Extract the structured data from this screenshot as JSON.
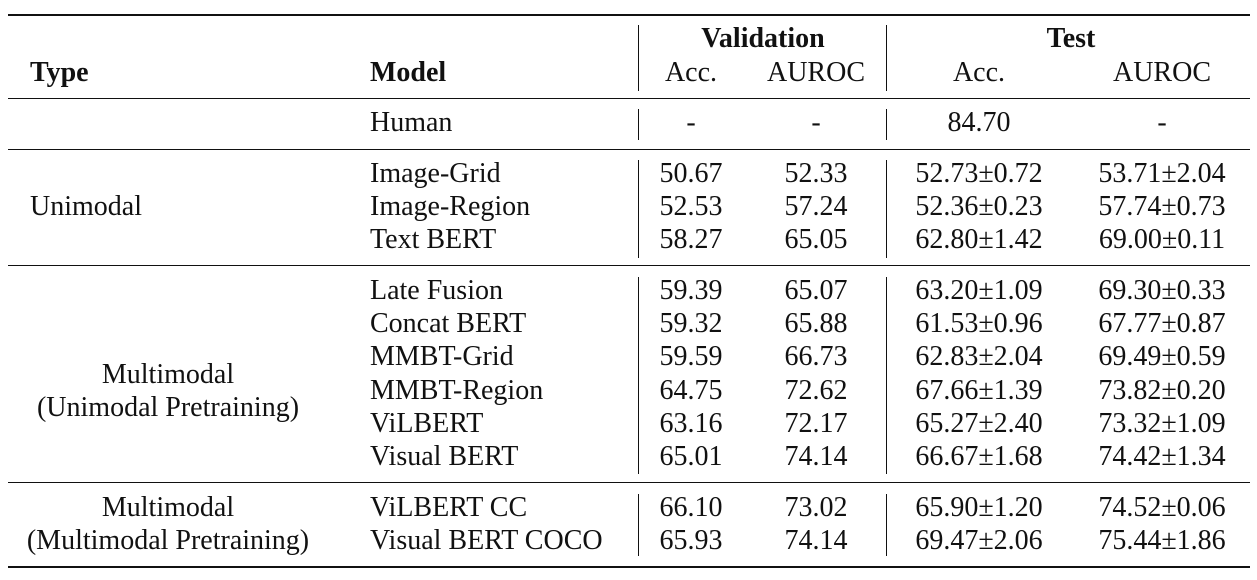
{
  "header": {
    "type": "Type",
    "model": "Model",
    "validation": "Validation",
    "test": "Test",
    "acc": "Acc.",
    "auroc": "AUROC"
  },
  "groups": [
    {
      "type_lines": [
        ""
      ],
      "rows": [
        {
          "model": "Human",
          "val_acc": "-",
          "val_auroc": "-",
          "test_acc": "84.70",
          "test_auroc": "-"
        }
      ]
    },
    {
      "type_lines": [
        "Unimodal"
      ],
      "rows": [
        {
          "model": "Image-Grid",
          "val_acc": "50.67",
          "val_auroc": "52.33",
          "test_acc": "52.73±0.72",
          "test_auroc": "53.71±2.04"
        },
        {
          "model": "Image-Region",
          "val_acc": "52.53",
          "val_auroc": "57.24",
          "test_acc": "52.36±0.23",
          "test_auroc": "57.74±0.73"
        },
        {
          "model": "Text BERT",
          "val_acc": "58.27",
          "val_auroc": "65.05",
          "test_acc": "62.80±1.42",
          "test_auroc": "69.00±0.11"
        }
      ]
    },
    {
      "type_lines": [
        "Multimodal",
        "(Unimodal Pretraining)"
      ],
      "rows": [
        {
          "model": "Late Fusion",
          "val_acc": "59.39",
          "val_auroc": "65.07",
          "test_acc": "63.20±1.09",
          "test_auroc": "69.30±0.33"
        },
        {
          "model": "Concat BERT",
          "val_acc": "59.32",
          "val_auroc": "65.88",
          "test_acc": "61.53±0.96",
          "test_auroc": "67.77±0.87"
        },
        {
          "model": "MMBT-Grid",
          "val_acc": "59.59",
          "val_auroc": "66.73",
          "test_acc": "62.83±2.04",
          "test_auroc": "69.49±0.59"
        },
        {
          "model": "MMBT-Region",
          "val_acc": "64.75",
          "val_auroc": "72.62",
          "test_acc": "67.66±1.39",
          "test_auroc": "73.82±0.20"
        },
        {
          "model": "ViLBERT",
          "val_acc": "63.16",
          "val_auroc": "72.17",
          "test_acc": "65.27±2.40",
          "test_auroc": "73.32±1.09"
        },
        {
          "model": "Visual BERT",
          "val_acc": "65.01",
          "val_auroc": "74.14",
          "test_acc": "66.67±1.68",
          "test_auroc": "74.42±1.34"
        }
      ]
    },
    {
      "type_lines": [
        "Multimodal",
        "(Multimodal Pretraining)"
      ],
      "rows": [
        {
          "model": "ViLBERT CC",
          "val_acc": "66.10",
          "val_auroc": "73.02",
          "test_acc": "65.90±1.20",
          "test_auroc": "74.52±0.06"
        },
        {
          "model": "Visual BERT COCO",
          "val_acc": "65.93",
          "val_auroc": "74.14",
          "test_acc": "69.47±2.06",
          "test_auroc": "75.44±1.86"
        }
      ]
    }
  ]
}
